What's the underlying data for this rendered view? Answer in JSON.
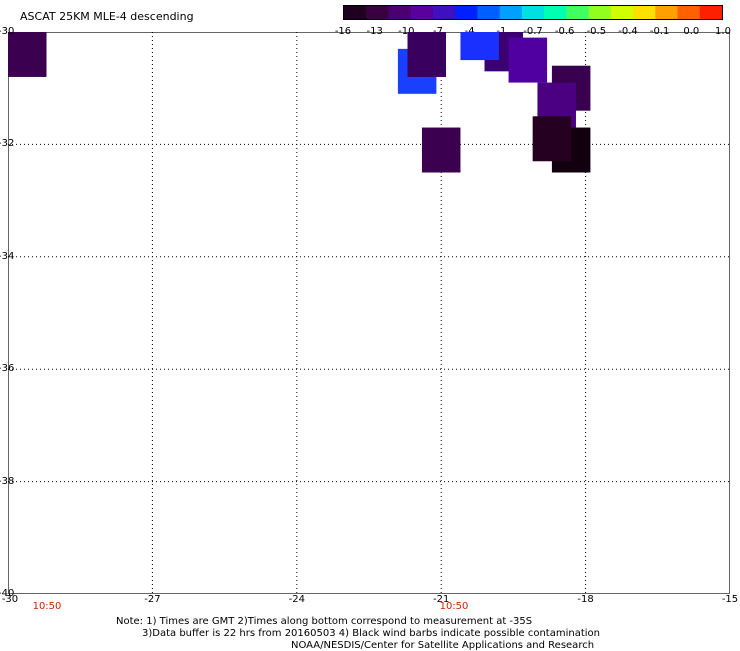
{
  "title": "ASCAT 25KM MLE-4 descending",
  "colorbar": {
    "colors": [
      "#200020",
      "#3a0040",
      "#4a0070",
      "#5a00a0",
      "#4010c0",
      "#0020ff",
      "#0060ff",
      "#00a0ff",
      "#00e0e0",
      "#00ffb0",
      "#40ff60",
      "#90ff20",
      "#d0ff00",
      "#ffe000",
      "#ffa000",
      "#ff6000",
      "#ff2000"
    ],
    "ticks": [
      "-16",
      "-13",
      "-10",
      "-7",
      "-4",
      "-1",
      "-0.7",
      "-0.6",
      "-0.5",
      "-0.4",
      "-0.1",
      "0.0",
      "1.0"
    ]
  },
  "axes": {
    "y_labels": [
      "-30",
      "-32",
      "-34",
      "-36",
      "-38",
      "-40"
    ],
    "x_labels": [
      "-30",
      "-27",
      "-24",
      "-21",
      "-18",
      "-15"
    ],
    "x_range": [
      -30,
      -15
    ],
    "y_range": [
      -40,
      -30
    ]
  },
  "times": [
    "10:50",
    "10:50"
  ],
  "notes": [
    "Note: 1) Times are GMT 2)Times along bottom correspond to measurement at -35S",
    "3)Data buffer is 22 hrs from 20160503 4) Black wind barbs indicate possible contamination",
    "NOAA/NESDIS/Center for Satellite Applications and Research"
  ],
  "cells": [
    {
      "lon": -29.6,
      "lat": -30.4,
      "color": "#3c0050"
    },
    {
      "lon": -21.5,
      "lat": -30.7,
      "color": "#1a40ff"
    },
    {
      "lon": -21.3,
      "lat": -30.4,
      "color": "#3a0060"
    },
    {
      "lon": -21.0,
      "lat": -32.1,
      "color": "#3c0050"
    },
    {
      "lon": -19.7,
      "lat": -30.3,
      "color": "#3a0070"
    },
    {
      "lon": -20.2,
      "lat": -30.1,
      "color": "#1a30ff"
    },
    {
      "lon": -19.2,
      "lat": -30.5,
      "color": "#5000a0"
    },
    {
      "lon": -18.3,
      "lat": -31.0,
      "color": "#3a0050"
    },
    {
      "lon": -18.6,
      "lat": -31.3,
      "color": "#4a0080"
    },
    {
      "lon": -18.3,
      "lat": -32.1,
      "color": "#120010"
    },
    {
      "lon": -18.7,
      "lat": -31.9,
      "color": "#250020"
    }
  ]
}
